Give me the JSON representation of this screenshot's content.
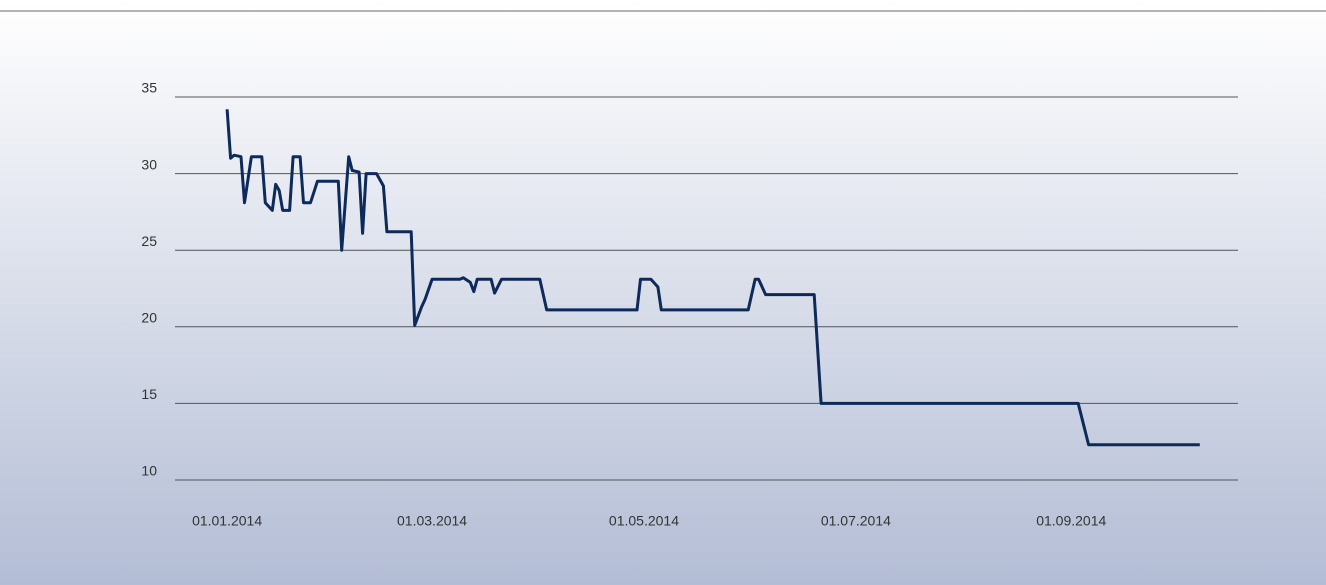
{
  "chart_data": {
    "type": "line",
    "x": [
      "2014-01-01",
      "2014-01-02",
      "2014-01-03",
      "2014-01-05",
      "2014-01-06",
      "2014-01-08",
      "2014-01-11",
      "2014-01-12",
      "2014-01-14",
      "2014-01-15",
      "2014-01-16",
      "2014-01-17",
      "2014-01-19",
      "2014-01-20",
      "2014-01-22",
      "2014-01-23",
      "2014-01-25",
      "2014-01-27",
      "2014-02-02",
      "2014-02-03",
      "2014-02-05",
      "2014-02-06",
      "2014-02-08",
      "2014-02-09",
      "2014-02-10",
      "2014-02-13",
      "2014-02-15",
      "2014-02-16",
      "2014-02-23",
      "2014-02-24",
      "2014-02-26",
      "2014-02-27",
      "2014-03-01",
      "2014-03-09",
      "2014-03-10",
      "2014-03-12",
      "2014-03-13",
      "2014-03-14",
      "2014-03-18",
      "2014-03-19",
      "2014-03-21",
      "2014-04-01",
      "2014-04-03",
      "2014-04-29",
      "2014-04-30",
      "2014-05-03",
      "2014-05-05",
      "2014-05-06",
      "2014-05-31",
      "2014-06-02",
      "2014-06-03",
      "2014-06-05",
      "2014-06-19",
      "2014-06-21",
      "2014-09-03",
      "2014-09-06",
      "2014-10-08"
    ],
    "series": [
      {
        "color": "#0d2a5a",
        "values": [
          34.2,
          31.0,
          31.2,
          31.1,
          28.1,
          31.1,
          31.1,
          28.1,
          27.6,
          29.3,
          28.9,
          27.6,
          27.6,
          31.1,
          31.1,
          28.1,
          28.1,
          29.5,
          29.5,
          25.0,
          31.1,
          30.2,
          30.1,
          26.1,
          30.0,
          30.0,
          29.2,
          26.2,
          26.2,
          20.1,
          21.3,
          21.8,
          23.1,
          23.1,
          23.2,
          22.9,
          22.3,
          23.1,
          23.1,
          22.2,
          23.1,
          23.1,
          21.1,
          21.1,
          23.1,
          23.1,
          22.6,
          21.1,
          21.1,
          23.1,
          23.1,
          22.1,
          22.1,
          15.0,
          15.0,
          12.3,
          12.3
        ]
      }
    ],
    "xlim": [
      "2013-12-17",
      "2014-10-19"
    ],
    "xticks": [
      {
        "value": "2014-01-01",
        "label": "01.01.2014"
      },
      {
        "value": "2014-03-01",
        "label": "01.03.2014"
      },
      {
        "value": "2014-05-01",
        "label": "01.05.2014"
      },
      {
        "value": "2014-07-01",
        "label": "01.07.2014"
      },
      {
        "value": "2014-09-01",
        "label": "01.09.2014"
      }
    ],
    "ylim": [
      10,
      35
    ],
    "yticks": [
      10,
      15,
      20,
      25,
      30,
      35
    ],
    "grid": true
  }
}
